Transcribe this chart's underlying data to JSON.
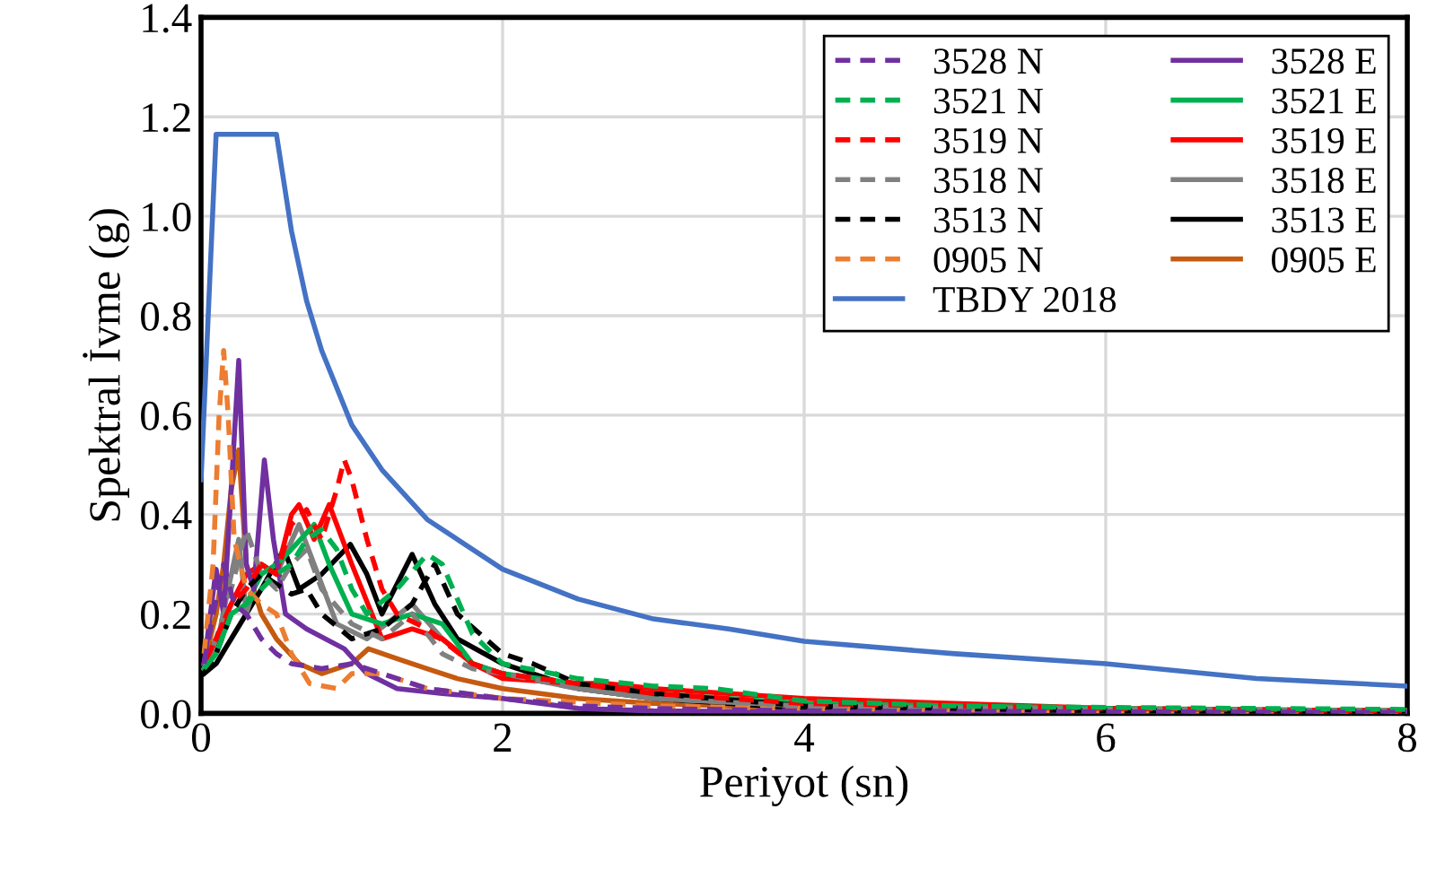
{
  "chart_data": {
    "type": "line",
    "xlabel": "Periyot (sn)",
    "ylabel": "Spektral İvme (g)",
    "xlim": [
      0,
      8
    ],
    "ylim": [
      0,
      1.4
    ],
    "xticks": [
      0,
      2,
      4,
      6,
      8
    ],
    "yticks": [
      {
        "value": 0,
        "label": "0.0"
      },
      {
        "value": 0.2,
        "label": "0.2"
      },
      {
        "value": 0.4,
        "label": "0.4"
      },
      {
        "value": 0.6,
        "label": "0.6"
      },
      {
        "value": 0.8,
        "label": "0.8"
      },
      {
        "value": 1.0,
        "label": "1.0"
      },
      {
        "value": 1.2,
        "label": "1.2"
      },
      {
        "value": 1.4,
        "label": "1.4"
      }
    ],
    "grid": true,
    "legend": "top right",
    "marker": "none",
    "series": [
      {
        "name": "3528 N",
        "color": "#7030a0",
        "line_style": "dashed",
        "x": [
          0.02,
          0.08,
          0.15,
          0.22,
          0.3,
          0.4,
          0.5,
          0.6,
          0.8,
          1.0,
          1.2,
          1.5,
          2.0,
          2.5,
          3.0,
          4.0,
          6.0,
          8.0
        ],
        "values": [
          0.1,
          0.2,
          0.3,
          0.22,
          0.2,
          0.15,
          0.12,
          0.1,
          0.09,
          0.1,
          0.08,
          0.05,
          0.03,
          0.015,
          0.01,
          0.005,
          0.003,
          0.002
        ]
      },
      {
        "name": "3521 N",
        "color": "#00b050",
        "line_style": "dashed",
        "x": [
          0.02,
          0.1,
          0.2,
          0.3,
          0.4,
          0.5,
          0.6,
          0.7,
          0.8,
          0.9,
          1.0,
          1.1,
          1.3,
          1.5,
          1.6,
          1.8,
          2.0,
          2.5,
          3.0,
          3.4,
          4.0,
          5.0,
          6.0,
          8.0
        ],
        "values": [
          0.09,
          0.12,
          0.2,
          0.22,
          0.25,
          0.28,
          0.3,
          0.35,
          0.37,
          0.33,
          0.25,
          0.2,
          0.25,
          0.32,
          0.3,
          0.16,
          0.1,
          0.07,
          0.055,
          0.05,
          0.025,
          0.015,
          0.012,
          0.008
        ]
      },
      {
        "name": "3519 N",
        "color": "#ff0000",
        "line_style": "dashed",
        "x": [
          0.02,
          0.1,
          0.2,
          0.3,
          0.4,
          0.5,
          0.6,
          0.7,
          0.8,
          0.9,
          0.95,
          1.0,
          1.1,
          1.2,
          1.3,
          1.5,
          1.8,
          2.0,
          2.5,
          3.0,
          4.0,
          6.0,
          8.0
        ],
        "values": [
          0.1,
          0.15,
          0.22,
          0.25,
          0.3,
          0.28,
          0.38,
          0.41,
          0.35,
          0.45,
          0.51,
          0.47,
          0.35,
          0.25,
          0.2,
          0.17,
          0.1,
          0.08,
          0.06,
          0.04,
          0.02,
          0.01,
          0.005
        ]
      },
      {
        "name": "3518 N",
        "color": "#808080",
        "line_style": "dashed",
        "x": [
          0.02,
          0.1,
          0.2,
          0.3,
          0.4,
          0.5,
          0.6,
          0.7,
          0.8,
          1.0,
          1.2,
          1.4,
          1.6,
          1.8,
          2.0,
          2.5,
          3.0,
          4.0,
          6.0,
          8.0
        ],
        "values": [
          0.09,
          0.15,
          0.25,
          0.37,
          0.28,
          0.25,
          0.3,
          0.33,
          0.25,
          0.18,
          0.15,
          0.2,
          0.12,
          0.09,
          0.08,
          0.05,
          0.03,
          0.015,
          0.008,
          0.005
        ]
      },
      {
        "name": "3513 N",
        "color": "#000000",
        "line_style": "dashed",
        "x": [
          0.02,
          0.1,
          0.2,
          0.3,
          0.4,
          0.5,
          0.6,
          0.7,
          0.8,
          1.0,
          1.2,
          1.4,
          1.55,
          1.7,
          2.0,
          2.2,
          2.5,
          3.0,
          4.0,
          6.0,
          8.0
        ],
        "values": [
          0.08,
          0.12,
          0.2,
          0.25,
          0.28,
          0.26,
          0.24,
          0.25,
          0.2,
          0.15,
          0.17,
          0.22,
          0.3,
          0.2,
          0.12,
          0.1,
          0.06,
          0.04,
          0.015,
          0.005,
          0.003
        ]
      },
      {
        "name": "0905 N",
        "color": "#ed7d31",
        "line_style": "dashed",
        "x": [
          0.02,
          0.08,
          0.12,
          0.15,
          0.18,
          0.22,
          0.3,
          0.4,
          0.5,
          0.6,
          0.72,
          0.9,
          1.0,
          1.2,
          1.5,
          2.0,
          3.0,
          4.0,
          6.0,
          8.0
        ],
        "values": [
          0.12,
          0.3,
          0.6,
          0.73,
          0.6,
          0.35,
          0.25,
          0.22,
          0.2,
          0.12,
          0.06,
          0.05,
          0.08,
          0.08,
          0.05,
          0.03,
          0.015,
          0.01,
          0.005,
          0.003
        ]
      },
      {
        "name": "TBDY 2018",
        "color": "#4472c4",
        "line_style": "solid",
        "x": [
          0,
          0.1,
          0.5,
          0.6,
          0.7,
          0.8,
          1.0,
          1.2,
          1.5,
          2.0,
          2.5,
          3.0,
          3.5,
          4.0,
          5.0,
          6.0,
          7.0,
          8.0
        ],
        "values": [
          0.47,
          1.165,
          1.165,
          0.97,
          0.83,
          0.73,
          0.58,
          0.49,
          0.39,
          0.29,
          0.23,
          0.19,
          0.17,
          0.145,
          0.12,
          0.1,
          0.07,
          0.055
        ]
      },
      {
        "name": "3528 E",
        "color": "#7030a0",
        "line_style": "solid",
        "x": [
          0.02,
          0.1,
          0.15,
          0.2,
          0.25,
          0.3,
          0.35,
          0.42,
          0.48,
          0.56,
          0.7,
          0.95,
          1.1,
          1.3,
          1.6,
          2.0,
          2.5,
          3.0,
          4.0,
          6.0,
          8.0
        ],
        "values": [
          0.1,
          0.29,
          0.2,
          0.45,
          0.71,
          0.3,
          0.25,
          0.51,
          0.35,
          0.2,
          0.17,
          0.13,
          0.08,
          0.05,
          0.04,
          0.03,
          0.01,
          0.005,
          0.003,
          0.002,
          0.001
        ]
      },
      {
        "name": "3521 E",
        "color": "#00b050",
        "line_style": "solid",
        "x": [
          0.02,
          0.1,
          0.2,
          0.3,
          0.4,
          0.5,
          0.6,
          0.75,
          0.85,
          1.0,
          1.2,
          1.4,
          1.6,
          1.8,
          2.0,
          2.5,
          3.0,
          4.0,
          6.0,
          8.0
        ],
        "values": [
          0.09,
          0.12,
          0.2,
          0.22,
          0.28,
          0.3,
          0.33,
          0.38,
          0.3,
          0.2,
          0.18,
          0.2,
          0.18,
          0.1,
          0.08,
          0.06,
          0.04,
          0.02,
          0.01,
          0.005
        ]
      },
      {
        "name": "3519 E",
        "color": "#ff0000",
        "line_style": "solid",
        "x": [
          0.02,
          0.1,
          0.2,
          0.3,
          0.4,
          0.5,
          0.6,
          0.65,
          0.75,
          0.85,
          1.0,
          1.2,
          1.4,
          1.6,
          1.8,
          2.0,
          2.5,
          2.7,
          3.0,
          4.0,
          6.0,
          8.0
        ],
        "values": [
          0.1,
          0.15,
          0.22,
          0.28,
          0.3,
          0.28,
          0.4,
          0.42,
          0.35,
          0.42,
          0.3,
          0.15,
          0.17,
          0.15,
          0.1,
          0.07,
          0.06,
          0.06,
          0.05,
          0.03,
          0.01,
          0.005
        ]
      },
      {
        "name": "3518 E",
        "color": "#808080",
        "line_style": "solid",
        "x": [
          0.02,
          0.1,
          0.18,
          0.25,
          0.3,
          0.4,
          0.5,
          0.65,
          0.75,
          0.9,
          1.1,
          1.4,
          1.6,
          1.8,
          2.0,
          2.5,
          3.0,
          4.0,
          6.0,
          8.0
        ],
        "values": [
          0.09,
          0.13,
          0.25,
          0.35,
          0.2,
          0.3,
          0.28,
          0.38,
          0.3,
          0.18,
          0.15,
          0.22,
          0.15,
          0.1,
          0.08,
          0.05,
          0.03,
          0.015,
          0.008,
          0.005
        ]
      },
      {
        "name": "3513 E",
        "color": "#000000",
        "line_style": "solid",
        "x": [
          0.02,
          0.1,
          0.2,
          0.3,
          0.4,
          0.55,
          0.65,
          0.8,
          0.99,
          1.1,
          1.2,
          1.4,
          1.55,
          1.7,
          2.0,
          2.2,
          2.5,
          3.0,
          4.0,
          6.0,
          8.0
        ],
        "values": [
          0.08,
          0.1,
          0.15,
          0.2,
          0.25,
          0.33,
          0.25,
          0.28,
          0.34,
          0.28,
          0.2,
          0.32,
          0.22,
          0.15,
          0.1,
          0.08,
          0.05,
          0.03,
          0.01,
          0.005,
          0.003
        ]
      },
      {
        "name": "0905 E",
        "color": "#c55a11",
        "line_style": "solid",
        "x": [
          0.02,
          0.1,
          0.15,
          0.2,
          0.25,
          0.3,
          0.4,
          0.5,
          0.65,
          0.8,
          1.0,
          1.11,
          1.3,
          1.5,
          1.7,
          2.0,
          2.5,
          3.0,
          4.0,
          6.0,
          8.0
        ],
        "values": [
          0.1,
          0.2,
          0.3,
          0.45,
          0.53,
          0.3,
          0.2,
          0.15,
          0.1,
          0.08,
          0.1,
          0.13,
          0.11,
          0.09,
          0.07,
          0.05,
          0.03,
          0.02,
          0.01,
          0.005,
          0.003
        ]
      }
    ]
  }
}
